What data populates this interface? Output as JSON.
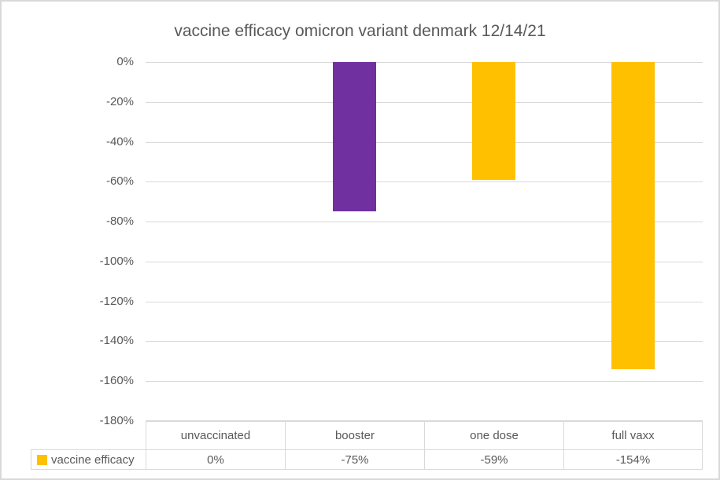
{
  "chart_data": {
    "type": "bar",
    "title": "vaccine efficacy omicron variant denmark 12/14/21",
    "categories": [
      "unvaccinated",
      "booster",
      "one dose",
      "full vaxx"
    ],
    "series": [
      {
        "name": "vaccine efficacy",
        "values": [
          0,
          -75,
          -59,
          -154
        ],
        "value_labels": [
          "0%",
          "-75%",
          "-59%",
          "-154%"
        ],
        "bar_colors": [
          "#FFC000",
          "#7030A0",
          "#FFC000",
          "#FFC000"
        ]
      }
    ],
    "ylim": [
      -180,
      0
    ],
    "yticks": [
      0,
      -20,
      -40,
      -60,
      -80,
      -100,
      -120,
      -140,
      -160,
      -180
    ],
    "ytick_labels": [
      "0%",
      "-20%",
      "-40%",
      "-60%",
      "-80%",
      "-100%",
      "-120%",
      "-140%",
      "-160%",
      "-180%"
    ],
    "grid": true,
    "legend_position": "data-table-left",
    "data_table_shown": true
  },
  "legend": {
    "label": "vaccine efficacy",
    "swatch_color": "#FFC000"
  },
  "colors": {
    "accent_yellow": "#FFC000",
    "accent_purple": "#7030A0",
    "gridline": "#D9D9D9",
    "table_border": "#D9D9D9",
    "chart_border": "#D9D9D9",
    "text": "#595959"
  }
}
